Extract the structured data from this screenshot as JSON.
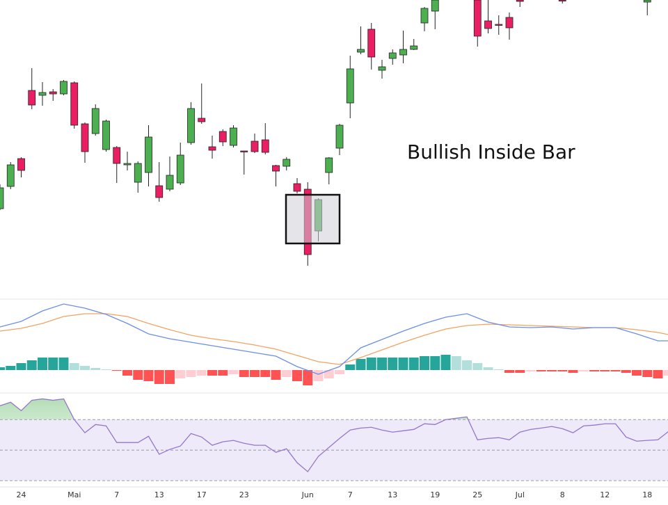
{
  "chart_data": {
    "type": "candlestick",
    "annotation": "Bullish Inside Bar",
    "categories": [
      null,
      null,
      "24",
      null,
      null,
      null,
      null,
      "Mai",
      null,
      null,
      null,
      "7",
      null,
      null,
      null,
      "13",
      null,
      null,
      null,
      "17",
      null,
      null,
      null,
      "23",
      null,
      null,
      null,
      null,
      null,
      "Jun",
      null,
      null,
      null,
      "7",
      null,
      null,
      null,
      "13",
      null,
      null,
      null,
      "19",
      null,
      null,
      null,
      "25",
      null,
      null,
      null,
      "Jul",
      null,
      null,
      null,
      "8",
      null,
      null,
      null,
      "12",
      null,
      null,
      null,
      "18",
      null,
      null
    ],
    "open": [
      120,
      152,
      192,
      290,
      283,
      288,
      285,
      301,
      242,
      228,
      205,
      208,
      183,
      158,
      172,
      153,
      148,
      157,
      215,
      250,
      209,
      231,
      211,
      203,
      217,
      219,
      182,
      181,
      156,
      148,
      88,
      172,
      207,
      272,
      345,
      378,
      319,
      336,
      341,
      349,
      387,
      404,
      null,
      null,
      null,
      420,
      390,
      385,
      395,
      420,
      null,
      null,
      null,
      420,
      null,
      null,
      null,
      null,
      null,
      null,
      null,
      417,
      null,
      null
    ],
    "high": [
      155,
      187,
      194,
      322,
      302,
      292,
      305,
      303,
      244,
      270,
      248,
      210,
      202,
      188,
      240,
      187,
      195,
      215,
      273,
      300,
      225,
      234,
      240,
      203,
      228,
      243,
      183,
      194,
      164,
      158,
      135,
      194,
      242,
      340,
      382,
      387,
      334,
      349,
      376,
      364,
      410,
      420,
      null,
      null,
      null,
      420,
      420,
      398,
      402,
      420,
      null,
      null,
      null,
      420,
      null,
      null,
      null,
      null,
      null,
      null,
      null,
      420,
      null,
      null
    ],
    "low": [
      118,
      148,
      165,
      263,
      268,
      275,
      283,
      235,
      186,
      225,
      202,
      157,
      175,
      143,
      152,
      130,
      145,
      154,
      212,
      242,
      192,
      210,
      208,
      169,
      200,
      198,
      152,
      175,
      142,
      38,
      73,
      155,
      197,
      250,
      342,
      320,
      307,
      327,
      329,
      348,
      375,
      378,
      null,
      null,
      null,
      353,
      372,
      370,
      363,
      410,
      null,
      null,
      null,
      415,
      null,
      null,
      null,
      null,
      null,
      null,
      null,
      398,
      null,
      null
    ],
    "close": [
      150,
      183,
      175,
      269,
      287,
      285,
      303,
      240,
      202,
      264,
      246,
      185,
      185,
      185,
      223,
      136,
      168,
      197,
      264,
      245,
      204,
      216,
      236,
      202,
      202,
      201,
      174,
      191,
      145,
      54,
      133,
      193,
      240,
      321,
      349,
      338,
      324,
      344,
      349,
      354,
      408,
      420,
      null,
      null,
      null,
      368,
      379,
      384,
      380,
      418,
      null,
      null,
      null,
      419,
      null,
      null,
      null,
      null,
      null,
      null,
      null,
      420,
      null,
      null
    ],
    "up_color": "#4caf50",
    "down_color": "#e91e63",
    "ylim": [
      0,
      420
    ],
    "macd": {
      "ylim": [
        -33,
        102
      ],
      "x": [
        0,
        2,
        4,
        6,
        8,
        10,
        12,
        14,
        16,
        18,
        20,
        22,
        24,
        26,
        28,
        30,
        32,
        34,
        36,
        38,
        40,
        42,
        44,
        46,
        48,
        50,
        52,
        54,
        56,
        58,
        60,
        62,
        63
      ],
      "line": {
        "color": "#6a8fe6",
        "values": [
          62,
          70,
          85,
          95,
          89,
          80,
          67,
          52,
          45,
          40,
          35,
          30,
          25,
          20,
          5,
          -6,
          5,
          32,
          44,
          56,
          67,
          76,
          81,
          69,
          62,
          61,
          62,
          59,
          61,
          61,
          52,
          42,
          42
        ]
      },
      "signal": {
        "color": "#f4a261",
        "values": [
          56,
          60,
          67,
          77,
          81,
          81,
          77,
          67,
          58,
          50,
          45,
          41,
          36,
          30,
          21,
          12,
          8,
          18,
          29,
          40,
          50,
          59,
          64,
          66,
          65,
          64,
          63,
          62,
          61,
          61,
          58,
          54,
          51
        ]
      },
      "histogram": {
        "values": [
          4,
          6,
          10,
          14,
          18,
          18,
          18,
          10,
          6,
          3,
          1,
          -1,
          -8,
          -14,
          -16,
          -20,
          -20,
          -12,
          -10,
          -8,
          -8,
          -8,
          -6,
          -10,
          -10,
          -10,
          -14,
          -10,
          -16,
          -22,
          -16,
          -12,
          -6,
          8,
          16,
          18,
          18,
          18,
          18,
          18,
          20,
          20,
          22,
          20,
          14,
          10,
          4,
          1,
          -4,
          -4,
          -2,
          -2,
          -2,
          -2,
          -4,
          -2,
          -2,
          -2,
          -2,
          -4,
          -8,
          -10,
          -12,
          -8
        ],
        "colors": {
          "up_grow": "#26a69a",
          "up_fall": "#b2dfdb",
          "down_grow": "#ff5252",
          "down_fall": "#ffcdd2"
        }
      }
    },
    "rsi": {
      "ylim": [
        25,
        87
      ],
      "x": [
        0,
        1,
        2,
        3,
        4,
        5,
        6,
        7,
        8,
        9,
        10,
        11,
        13,
        14,
        15,
        16,
        17,
        18,
        19,
        20,
        21,
        22,
        23,
        24,
        25,
        26,
        27,
        28,
        29,
        30,
        31,
        32,
        33,
        34,
        35,
        36,
        37,
        38,
        39,
        40,
        41,
        42,
        43,
        44,
        45,
        46,
        47,
        48,
        49,
        50,
        51,
        52,
        53,
        54,
        55,
        56,
        57,
        58,
        59,
        60,
        61,
        62,
        63
      ],
      "values": [
        79.1,
        81.4,
        75.9,
        82.7,
        83.6,
        82.7,
        83.6,
        70,
        61.4,
        66.8,
        65.9,
        55,
        55,
        59.1,
        47.3,
        50.5,
        52.7,
        60.9,
        58.6,
        53.2,
        55.5,
        56.4,
        54.5,
        53.2,
        53.2,
        48.6,
        50.9,
        41.8,
        35.9,
        45.9,
        51.8,
        57.7,
        63.2,
        64.5,
        65,
        63.2,
        61.8,
        62.7,
        63.6,
        67.3,
        66.8,
        70,
        70.9,
        71.8,
        56.8,
        57.7,
        58.2,
        56.8,
        61.8,
        63.6,
        64.5,
        65.5,
        64.1,
        61.4,
        65.9,
        66.4,
        67.3,
        67.3,
        58.6,
        55.9,
        56.4,
        56.8,
        62.3
      ],
      "color": "#9575cd",
      "levels": [
        70,
        50,
        30
      ],
      "band_color": "#efeafa",
      "overbought_color": "#a5d6a7"
    }
  }
}
